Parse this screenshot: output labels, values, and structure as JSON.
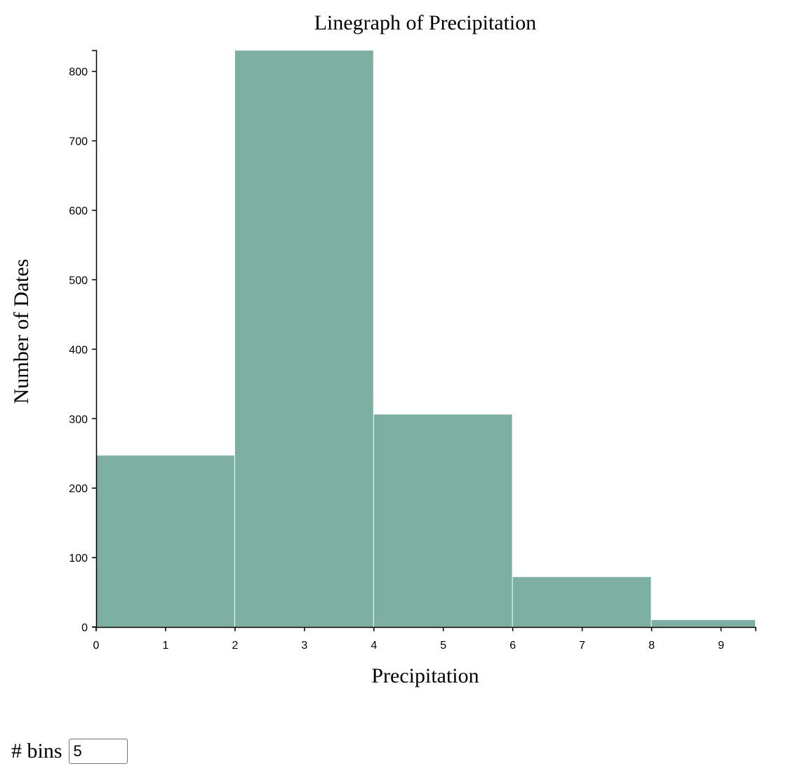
{
  "chart_data": {
    "type": "bar",
    "title": "Linegraph of Precipitation",
    "xlabel": "Precipitation",
    "ylabel": "Number of Dates",
    "xlim": [
      0,
      9.5
    ],
    "ylim": [
      0,
      830
    ],
    "x_ticks": [
      0,
      1,
      2,
      3,
      4,
      5,
      6,
      7,
      8,
      9
    ],
    "y_ticks": [
      0,
      100,
      200,
      300,
      400,
      500,
      600,
      700,
      800
    ],
    "bins": [
      {
        "x0": 0,
        "x1": 2,
        "value": 247
      },
      {
        "x0": 2,
        "x1": 4,
        "value": 830
      },
      {
        "x0": 4,
        "x1": 6,
        "value": 306
      },
      {
        "x0": 6,
        "x1": 8,
        "value": 72
      },
      {
        "x0": 8,
        "x1": 9.5,
        "value": 10
      }
    ],
    "bar_color": "#7db0a2",
    "grid": false,
    "legend": "none"
  },
  "controls": {
    "bins_label": "# bins",
    "bins_value": "5"
  }
}
